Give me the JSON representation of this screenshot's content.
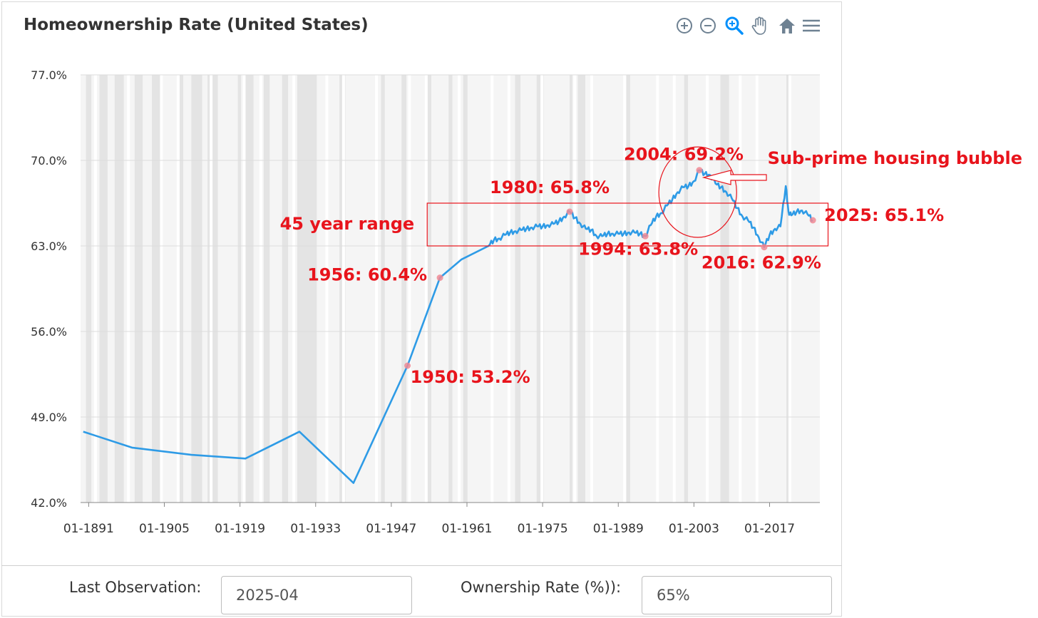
{
  "chart_data": {
    "type": "line",
    "title": "Homeownership Rate (United States)",
    "xlabel": "",
    "ylabel": "",
    "xlim": [
      1889.5,
      2026.3
    ],
    "ylim": [
      42.0,
      77.0
    ],
    "y_ticks": [
      "77.0%",
      "70.0%",
      "63.0%",
      "56.0%",
      "49.0%",
      "42.0%"
    ],
    "x_ticks": [
      "01-1891",
      "01-1905",
      "01-1919",
      "01-1933",
      "01-1947",
      "01-1961",
      "01-1975",
      "01-1989",
      "01-2003",
      "01-2017"
    ],
    "series": [
      {
        "name": "Homeownership Rate",
        "color": "#2e9be6",
        "x": [
          1890,
          1899,
          1910,
          1920,
          1930,
          1940,
          1950,
          1956,
          1960,
          1965,
          1966,
          1967,
          1968,
          1969,
          1970,
          1971,
          1972,
          1973,
          1974,
          1975,
          1976,
          1977,
          1978,
          1979,
          1980,
          1981,
          1982,
          1983,
          1984,
          1985,
          1986,
          1987,
          1988,
          1989,
          1990,
          1991,
          1992,
          1993,
          1994,
          1995,
          1996,
          1997,
          1998,
          1999,
          2000,
          2001,
          2002,
          2003,
          2004,
          2005,
          2006,
          2007,
          2008,
          2009,
          2010,
          2011,
          2012,
          2013,
          2014,
          2015,
          2016,
          2017,
          2018,
          2019,
          2020,
          2020.5,
          2021,
          2022,
          2023,
          2024,
          2025
        ],
        "y": [
          47.8,
          46.5,
          45.9,
          45.6,
          47.8,
          43.6,
          53.2,
          60.4,
          61.9,
          63.0,
          63.5,
          63.6,
          63.9,
          64.1,
          64.2,
          64.3,
          64.4,
          64.5,
          64.6,
          64.6,
          64.7,
          64.8,
          65.0,
          65.4,
          65.8,
          65.3,
          64.8,
          64.4,
          64.3,
          63.8,
          63.8,
          64.0,
          64.0,
          64.0,
          64.0,
          64.1,
          64.1,
          64.0,
          63.8,
          64.7,
          65.4,
          65.7,
          66.3,
          66.8,
          67.4,
          67.8,
          67.9,
          68.3,
          69.2,
          68.9,
          68.8,
          68.1,
          67.8,
          67.4,
          66.9,
          66.1,
          65.4,
          65.1,
          64.5,
          63.7,
          62.9,
          63.9,
          64.4,
          64.6,
          67.9,
          65.8,
          65.5,
          65.8,
          65.9,
          65.6,
          65.1
        ]
      }
    ],
    "recession_bands": [
      [
        1890.5,
        1891.5
      ],
      [
        1893,
        1894.5
      ],
      [
        1895.8,
        1897.5
      ],
      [
        1899.5,
        1901
      ],
      [
        1902.7,
        1904.7
      ],
      [
        1907.4,
        1908.5
      ],
      [
        1910,
        1912
      ],
      [
        1913,
        1914.9
      ],
      [
        1918.6,
        1919.2
      ],
      [
        1920,
        1921.5
      ],
      [
        1923.4,
        1924.5
      ],
      [
        1926.8,
        1927.9
      ],
      [
        1929.6,
        1933.2
      ],
      [
        1937.4,
        1938.5
      ],
      [
        1945.1,
        1945.8
      ],
      [
        1948.9,
        1949.8
      ],
      [
        1953.5,
        1954.4
      ],
      [
        1957.6,
        1958.3
      ],
      [
        1960.3,
        1961.1
      ],
      [
        1969.9,
        1970.9
      ],
      [
        1973.9,
        1975.2
      ],
      [
        1980,
        1980.5
      ],
      [
        1981.5,
        1982.9
      ],
      [
        1990.5,
        1991.2
      ],
      [
        2001.2,
        2001.9
      ],
      [
        2007.9,
        2009.5
      ],
      [
        2020.1,
        2020.3
      ]
    ],
    "annotations": [
      {
        "label": "1950:  53.2%",
        "x": 1950,
        "y": 53.2
      },
      {
        "label": "1956: 60.4%",
        "x": 1956,
        "y": 60.4
      },
      {
        "label": "1980: 65.8%",
        "x": 1980,
        "y": 65.8
      },
      {
        "label": "1994: 63.8%",
        "x": 1994,
        "y": 63.8
      },
      {
        "label": "2004: 69.2%",
        "x": 2004,
        "y": 69.2
      },
      {
        "label": "2016: 62.9%",
        "x": 2016,
        "y": 62.9
      },
      {
        "label": "2025:  65.1%",
        "x": 2025,
        "y": 65.1
      }
    ],
    "range_box": {
      "label": "45 year range",
      "x": [
        1960.5,
        2026.5
      ],
      "y": [
        63.0,
        66.5
      ]
    },
    "bubble": {
      "label": "Sub-prime housing bubble",
      "center": [
        2003.7,
        67.4
      ],
      "radius_x_years": 7.2,
      "radius_y_pct": 3.7
    }
  },
  "form": {
    "last_observation_label": "Last Observation:",
    "last_observation_value": "2025-04",
    "ownership_rate_label": "Ownership Rate (%)):",
    "ownership_rate_value": "65%"
  },
  "toolbar": [
    "zoom-in-icon",
    "zoom-out-icon",
    "selection-zoom-icon",
    "pan-hand-icon",
    "home-reset-icon",
    "menu-icon"
  ],
  "colors": {
    "line": "#2e9be6",
    "annotation": "#e8141c",
    "recession": "#e4e4e4",
    "plot_bg": "#f5f5f5",
    "grid": "#dddddd"
  }
}
